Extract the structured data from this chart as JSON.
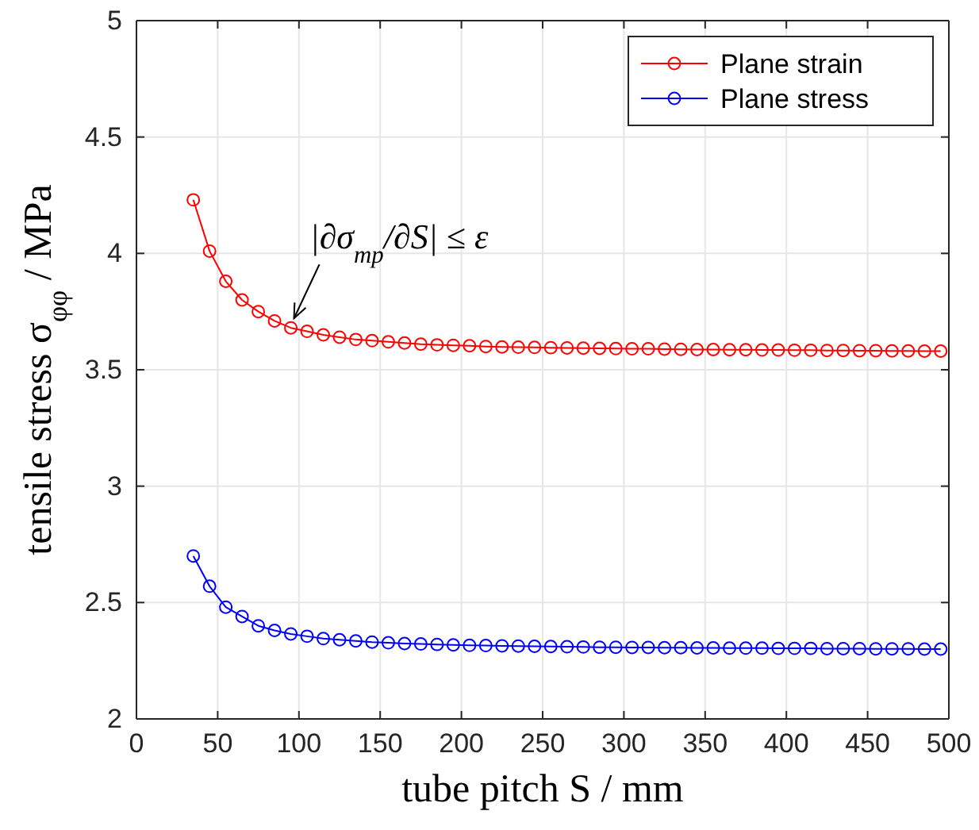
{
  "chart_data": {
    "type": "line",
    "xlabel": "tube pitch S / mm",
    "ylabel": "tensile stress σ$_{φφ}$ / MPa",
    "x": [
      35,
      45,
      55,
      65,
      75,
      85,
      95,
      105,
      115,
      125,
      135,
      145,
      155,
      165,
      175,
      185,
      195,
      205,
      215,
      225,
      235,
      245,
      255,
      265,
      275,
      285,
      295,
      305,
      315,
      325,
      335,
      345,
      355,
      365,
      375,
      385,
      395,
      405,
      415,
      425,
      435,
      445,
      455,
      465,
      475,
      485,
      495
    ],
    "series": [
      {
        "name": "Plane strain",
        "color": "#ff0000",
        "values": [
          4.23,
          4.01,
          3.88,
          3.8,
          3.75,
          3.71,
          3.68,
          3.665,
          3.65,
          3.64,
          3.63,
          3.625,
          3.62,
          3.615,
          3.61,
          3.607,
          3.605,
          3.603,
          3.6,
          3.598,
          3.597,
          3.596,
          3.595,
          3.594,
          3.593,
          3.592,
          3.591,
          3.59,
          3.59,
          3.589,
          3.588,
          3.587,
          3.587,
          3.586,
          3.586,
          3.585,
          3.585,
          3.584,
          3.584,
          3.583,
          3.583,
          3.582,
          3.582,
          3.581,
          3.581,
          3.58,
          3.58
        ]
      },
      {
        "name": "Plane stress",
        "color": "#0000ff",
        "values": [
          2.7,
          2.57,
          2.48,
          2.44,
          2.4,
          2.38,
          2.365,
          2.355,
          2.345,
          2.34,
          2.335,
          2.33,
          2.327,
          2.324,
          2.322,
          2.32,
          2.318,
          2.316,
          2.315,
          2.314,
          2.313,
          2.312,
          2.311,
          2.31,
          2.309,
          2.308,
          2.308,
          2.307,
          2.307,
          2.306,
          2.306,
          2.305,
          2.305,
          2.304,
          2.304,
          2.304,
          2.303,
          2.303,
          2.303,
          2.302,
          2.302,
          2.302,
          2.301,
          2.301,
          2.301,
          2.3,
          2.3
        ]
      }
    ],
    "xlim": [
      0,
      500
    ],
    "xticks": [
      0,
      50,
      100,
      150,
      200,
      250,
      300,
      350,
      400,
      450,
      500
    ],
    "ylim": [
      2,
      5
    ],
    "yticks": [
      2,
      2.5,
      3,
      3.5,
      4,
      4.5,
      5
    ],
    "grid": true,
    "legend": "top right",
    "marker": "circle",
    "line_style": "solid",
    "annotations": [
      {
        "text": "|∂σ$_{mp}$/∂S| ≤ ε",
        "x": 95,
        "y": 3.68
      }
    ]
  }
}
